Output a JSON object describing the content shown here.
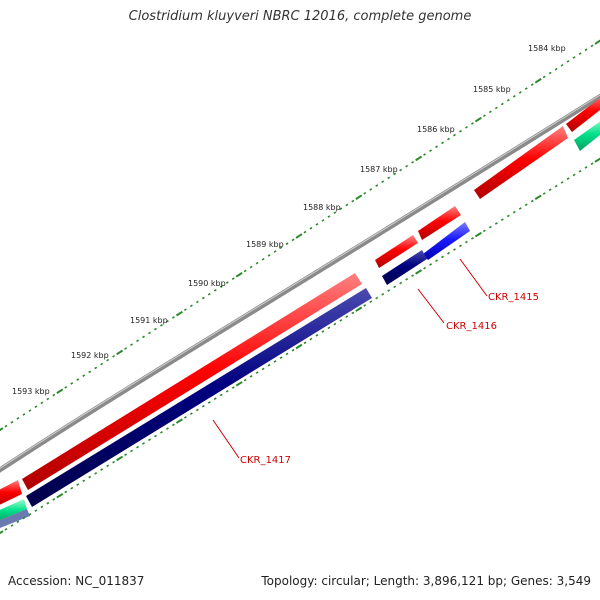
{
  "title": "Clostridium kluyveri NBRC 12016, complete genome",
  "footer": {
    "accession": "Accession: NC_011837",
    "summary": "Topology: circular; Length: 3,896,121 bp; Genes: 3,549"
  },
  "scale_ticks": [
    {
      "label": "1584 kbp"
    },
    {
      "label": "1585 kbp"
    },
    {
      "label": "1586 kbp"
    },
    {
      "label": "1587 kbp"
    },
    {
      "label": "1588 kbp"
    },
    {
      "label": "1589 kbp"
    },
    {
      "label": "1590 kbp"
    },
    {
      "label": "1591 kbp"
    },
    {
      "label": "1592 kbp"
    },
    {
      "label": "1593 kbp"
    }
  ],
  "genes": [
    {
      "label": "CKR_1415",
      "strand": "reverse",
      "color": "#1a1aff"
    },
    {
      "label": "CKR_1416",
      "strand": "reverse",
      "color": "#000080"
    },
    {
      "label": "CKR_1417",
      "strand": "reverse",
      "color": "#000080"
    }
  ],
  "colors": {
    "forward_cds": "#ff0000",
    "reverse_cds": "#000080",
    "highlight_cds": "#1a1aff",
    "rna": "#00e08a",
    "backbone": "#888888",
    "ticks": "#2a8a2a",
    "gene_label": "#cc0000"
  }
}
